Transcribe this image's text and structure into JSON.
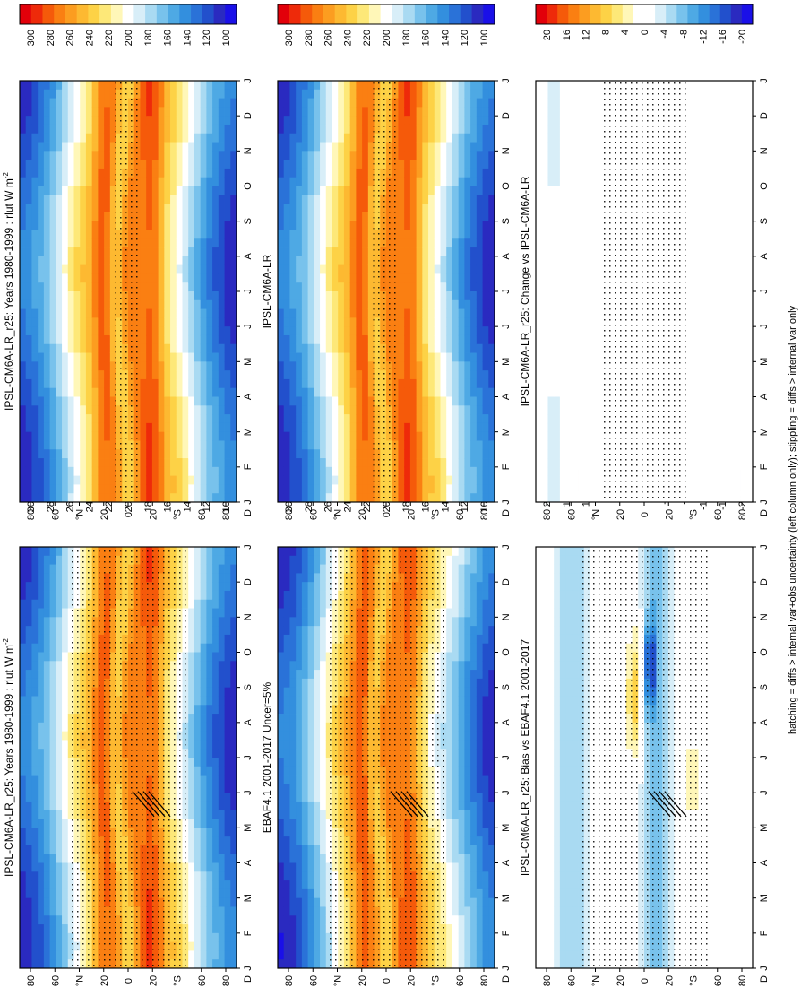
{
  "figure_footnote": "hatching = diffs > internal var+obs uncertainty (left column only); stippling = diffs > internal var only",
  "chart_data": [
    {
      "id": "p1",
      "type": "heatmap",
      "title": "IPSL-CM6A-LR_r25: Years 1980-1999 : rlut W m",
      "title_sup": "-2",
      "x_tick_labels": [
        "J",
        "F",
        "M",
        "A",
        "M",
        "J",
        "J",
        "A",
        "S",
        "O",
        "N",
        "D",
        "J"
      ],
      "x_end_label": "D",
      "y_tick_labels": [
        "80",
        "60",
        "°N",
        "20",
        "0",
        "20",
        "°S",
        "60",
        "80"
      ],
      "colorbar": {
        "labels": [
          "300",
          "280",
          "260",
          "240",
          "220",
          "200",
          "180",
          "160",
          "140",
          "120",
          "100"
        ],
        "colors": [
          "#e2000a",
          "#ee2a0a",
          "#f55a0a",
          "#fa7f12",
          "#fc9d20",
          "#fdb931",
          "#fdd246",
          "#fde878",
          "#fff7b8",
          "#ffffff",
          "#d8eef8",
          "#a9daf2",
          "#78c2ec",
          "#4ea9e4",
          "#338fde",
          "#2a72d8",
          "#2250cc",
          "#2a2ac0",
          "#1a10e8"
        ]
      },
      "field": "rlut_clim",
      "stipple_density": 0.55,
      "hatch": true
    },
    {
      "id": "p2",
      "type": "heatmap",
      "title": "IPSL-CM6A-LR_r25: Years 1980-1999 : rlut W m",
      "title_sup": "-2",
      "x_tick_labels": [
        "J",
        "F",
        "M",
        "A",
        "M",
        "J",
        "J",
        "A",
        "S",
        "O",
        "N",
        "D",
        "J"
      ],
      "x_end_label": "D",
      "y_tick_labels": [
        "80",
        "60",
        "°N",
        "20",
        "0",
        "20",
        "°S",
        "60",
        "80"
      ],
      "colorbar": {
        "labels": [
          "300",
          "280",
          "260",
          "240",
          "220",
          "200",
          "180",
          "160",
          "140",
          "120",
          "100"
        ],
        "colors": [
          "#e2000a",
          "#ee2a0a",
          "#f55a0a",
          "#fa7f12",
          "#fc9d20",
          "#fdb931",
          "#fdd246",
          "#fde878",
          "#fff7b8",
          "#ffffff",
          "#d8eef8",
          "#a9daf2",
          "#78c2ec",
          "#4ea9e4",
          "#338fde",
          "#2a72d8",
          "#2250cc",
          "#2a2ac0",
          "#1a10e8"
        ]
      },
      "field": "rlut_clim",
      "stipple_density": 0.12,
      "hatch": false
    },
    {
      "id": "p3",
      "type": "heatmap",
      "title": "EBAF4.1 2001-2017 Uncer=5%",
      "title_sup": "",
      "x_tick_labels": [
        "J",
        "F",
        "M",
        "A",
        "M",
        "J",
        "J",
        "A",
        "S",
        "O",
        "N",
        "D",
        "J"
      ],
      "x_end_label": "D",
      "y_tick_labels": [
        "80",
        "60",
        "°N",
        "20",
        "0",
        "20",
        "°S",
        "60",
        "80"
      ],
      "colorbar": {
        "labels": [
          "300",
          "280",
          "260",
          "240",
          "220",
          "200",
          "180",
          "160",
          "140",
          "120",
          "100"
        ],
        "colors": [
          "#e2000a",
          "#ee2a0a",
          "#f55a0a",
          "#fa7f12",
          "#fc9d20",
          "#fdb931",
          "#fdd246",
          "#fde878",
          "#fff7b8",
          "#ffffff",
          "#d8eef8",
          "#a9daf2",
          "#78c2ec",
          "#4ea9e4",
          "#338fde",
          "#2a72d8",
          "#2250cc",
          "#2a2ac0",
          "#1a10e8"
        ]
      },
      "field": "rlut_obs",
      "stipple_density": 0.55,
      "hatch": true
    },
    {
      "id": "p4",
      "type": "heatmap",
      "title": "IPSL-CM6A-LR",
      "title_sup": "",
      "x_tick_labels": [
        "J",
        "F",
        "M",
        "A",
        "M",
        "J",
        "J",
        "A",
        "S",
        "O",
        "N",
        "D",
        "J"
      ],
      "x_end_label": "D",
      "y_tick_labels": [
        "80",
        "60",
        "°N",
        "20",
        "0",
        "20",
        "°S",
        "60",
        "80"
      ],
      "colorbar": {
        "labels": [
          "300",
          "280",
          "260",
          "240",
          "220",
          "200",
          "180",
          "160",
          "140",
          "120",
          "100"
        ],
        "colors": [
          "#e2000a",
          "#ee2a0a",
          "#f55a0a",
          "#fa7f12",
          "#fc9d20",
          "#fdb931",
          "#fdd246",
          "#fde878",
          "#fff7b8",
          "#ffffff",
          "#d8eef8",
          "#a9daf2",
          "#78c2ec",
          "#4ea9e4",
          "#338fde",
          "#2a72d8",
          "#2250cc",
          "#2a2ac0",
          "#1a10e8"
        ]
      },
      "field": "rlut_clim",
      "stipple_density": 0.12,
      "hatch": false
    },
    {
      "id": "p5",
      "type": "heatmap",
      "title": "IPSL-CM6A-LR_r25: Bias vs EBAF4.1 2001-2017",
      "title_sup": "",
      "x_tick_labels": [
        "J",
        "F",
        "M",
        "A",
        "M",
        "J",
        "J",
        "A",
        "S",
        "O",
        "N",
        "D",
        "J"
      ],
      "x_end_label": "D",
      "y_tick_labels": [
        "80",
        "60",
        "°N",
        "20",
        "0",
        "20",
        "°S",
        "60",
        "80"
      ],
      "colorbar": {
        "labels": [
          "20",
          "16",
          "12",
          "8",
          "4",
          "0",
          "-4",
          "-8",
          "-12",
          "-16",
          "-20"
        ],
        "colors": [
          "#e2000a",
          "#ee2a0a",
          "#f55a0a",
          "#fa7f12",
          "#fc9d20",
          "#fdb931",
          "#fdd246",
          "#fde878",
          "#fff7b8",
          "#ffffff",
          "#ffffff",
          "#d8eef8",
          "#a9daf2",
          "#78c2ec",
          "#4ea9e4",
          "#338fde",
          "#2a72d8",
          "#2250cc",
          "#2a2ac0",
          "#1a10e8"
        ]
      },
      "field": "bias",
      "stipple_density": 0.6,
      "hatch": true
    },
    {
      "id": "p6",
      "type": "heatmap",
      "title": "IPSL-CM6A-LR_r25: Change vs IPSL-CM6A-LR",
      "title_sup": "",
      "x_tick_labels": [
        "J",
        "F",
        "M",
        "A",
        "M",
        "J",
        "J",
        "A",
        "S",
        "O",
        "N",
        "D",
        "J"
      ],
      "x_end_label": "D",
      "y_tick_labels": [
        "80",
        "60",
        "°N",
        "20",
        "0",
        "20",
        "°S",
        "60",
        "80"
      ],
      "colorbar": {
        "labels": [
          "20",
          "16",
          "12",
          "8",
          "4",
          "0",
          "-4",
          "-8",
          "-12",
          "-16",
          "-20"
        ],
        "colors": [
          "#e2000a",
          "#ee2a0a",
          "#f55a0a",
          "#fa7f12",
          "#fc9d20",
          "#fdb931",
          "#fdd246",
          "#fde878",
          "#fff7b8",
          "#ffffff",
          "#ffffff",
          "#d8eef8",
          "#a9daf2",
          "#78c2ec",
          "#4ea9e4",
          "#338fde",
          "#2a72d8",
          "#2250cc",
          "#2a2ac0",
          "#1a10e8"
        ]
      },
      "field": "change",
      "stipple_density": 0.4,
      "hatch": false
    }
  ]
}
